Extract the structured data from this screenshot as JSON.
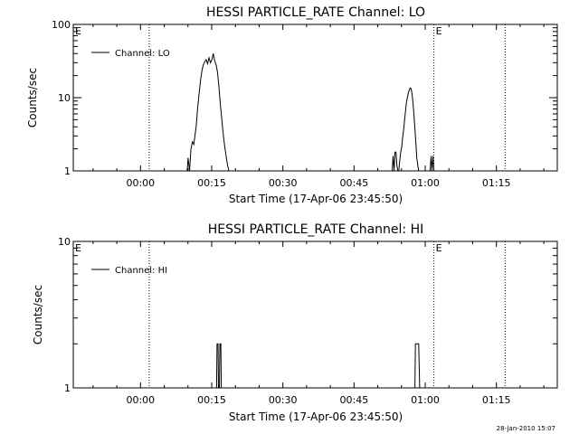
{
  "chart_data": [
    {
      "type": "line",
      "title": "HESSI PARTICLE_RATE Channel: LO",
      "xlabel": "Start Time (17-Apr-06 23:45:50)",
      "ylabel": "Counts/sec",
      "x_unit": "minutes after 17-Apr-06 23:45:50",
      "xlim": [
        0,
        102
      ],
      "ylim": [
        1,
        100
      ],
      "y_scale": "log",
      "grid": false,
      "legend_position": "top-left",
      "x_ticks": [
        {
          "x": 14.17,
          "label": "00:00"
        },
        {
          "x": 29.17,
          "label": "00:15"
        },
        {
          "x": 44.17,
          "label": "00:30"
        },
        {
          "x": 59.17,
          "label": "00:45"
        },
        {
          "x": 74.17,
          "label": "01:00"
        },
        {
          "x": 89.17,
          "label": "01:15"
        }
      ],
      "y_ticks": [
        {
          "y": 1,
          "label": "1"
        },
        {
          "y": 10,
          "label": "10"
        },
        {
          "y": 100,
          "label": "100"
        }
      ],
      "markers": [
        {
          "x": 0,
          "label": "E",
          "line": false
        },
        {
          "x": 16,
          "label": "",
          "line": true
        },
        {
          "x": 76,
          "label": "E",
          "line": true
        },
        {
          "x": 91,
          "label": "",
          "line": true
        }
      ],
      "series": [
        {
          "name": "Channel: LO",
          "x": [
            24.0,
            24.2,
            24.5,
            24.8,
            25.1,
            25.4,
            25.6,
            25.9,
            26.2,
            26.5,
            26.8,
            27.1,
            27.4,
            27.7,
            28.0,
            28.3,
            28.6,
            28.9,
            29.2,
            29.5,
            29.8,
            30.1,
            30.4,
            30.7,
            31.0,
            31.3,
            31.6,
            31.9,
            32.2,
            32.5,
            32.8,
            33.1,
            33.4,
            33.7,
            34.0
          ],
          "values": [
            1,
            1.5,
            1,
            2,
            2.5,
            2.3,
            2.9,
            4,
            7,
            11,
            17,
            23,
            28,
            31,
            33,
            29,
            35,
            30,
            33,
            40,
            32,
            28,
            22,
            14,
            8,
            5,
            3.2,
            2.2,
            1.6,
            1.2,
            1,
            1,
            1,
            1,
            1
          ]
        },
        {
          "name": "",
          "x": [
            67.0,
            67.2,
            67.4,
            67.6,
            67.8,
            68.0,
            68.2,
            68.4,
            68.6,
            68.8,
            69.0,
            69.2,
            69.4,
            69.6,
            69.8,
            70.0,
            70.2,
            70.4,
            70.6,
            70.8,
            71.0,
            71.2,
            71.4,
            71.6,
            71.8,
            72.0,
            72.2,
            72.4,
            72.6,
            72.8,
            73.0,
            73.2,
            73.4,
            73.6,
            73.8,
            74.0,
            74.2,
            74.4,
            74.6,
            74.8,
            75.0,
            75.2,
            75.4,
            75.6,
            75.8,
            76.0,
            76.2,
            76.4
          ],
          "values": [
            1,
            1,
            1.6,
            1,
            1.8,
            1.8,
            1.2,
            1,
            1,
            1.4,
            1.8,
            2.1,
            2.8,
            3.6,
            4.8,
            6.5,
            8.5,
            10,
            11.5,
            12.8,
            13.6,
            13.2,
            11.2,
            8.5,
            5.8,
            3.8,
            2.4,
            1.5,
            1.2,
            1,
            1,
            1,
            1,
            1,
            1,
            1,
            1,
            1,
            1,
            1,
            1,
            1,
            1.6,
            1,
            1.6,
            1,
            1,
            1
          ]
        }
      ]
    },
    {
      "type": "line",
      "title": "HESSI PARTICLE_RATE Channel: HI",
      "xlabel": "Start Time (17-Apr-06 23:45:50)",
      "ylabel": "Counts/sec",
      "x_unit": "minutes after 17-Apr-06 23:45:50",
      "xlim": [
        0,
        102
      ],
      "ylim": [
        1,
        10
      ],
      "y_scale": "log",
      "grid": false,
      "legend_position": "top-left",
      "x_ticks": [
        {
          "x": 14.17,
          "label": "00:00"
        },
        {
          "x": 29.17,
          "label": "00:15"
        },
        {
          "x": 44.17,
          "label": "00:30"
        },
        {
          "x": 59.17,
          "label": "00:45"
        },
        {
          "x": 74.17,
          "label": "01:00"
        },
        {
          "x": 89.17,
          "label": "01:15"
        }
      ],
      "y_ticks": [
        {
          "y": 1,
          "label": "1"
        },
        {
          "y": 10,
          "label": "10"
        }
      ],
      "markers": [
        {
          "x": 0,
          "label": "E",
          "line": false
        },
        {
          "x": 16,
          "label": "",
          "line": true
        },
        {
          "x": 76,
          "label": "E",
          "line": true
        },
        {
          "x": 91,
          "label": "",
          "line": true
        }
      ],
      "series": [
        {
          "name": "Channel: HI",
          "x": [
            30.0,
            30.2,
            30.3,
            30.5,
            30.6,
            30.8,
            30.9,
            31.1,
            31.2,
            31.4,
            31.5,
            31.8
          ],
          "values": [
            1,
            1,
            2,
            2,
            1,
            1,
            2,
            2,
            1,
            1,
            1,
            1
          ]
        },
        {
          "name": "",
          "x": [
            71.8,
            72.0,
            72.1,
            72.3,
            72.8,
            73.0,
            73.1
          ],
          "values": [
            1,
            1,
            2,
            2,
            2,
            1,
            1
          ]
        }
      ]
    }
  ],
  "footer": {
    "timestamp": "28-Jan-2010 15:07"
  }
}
